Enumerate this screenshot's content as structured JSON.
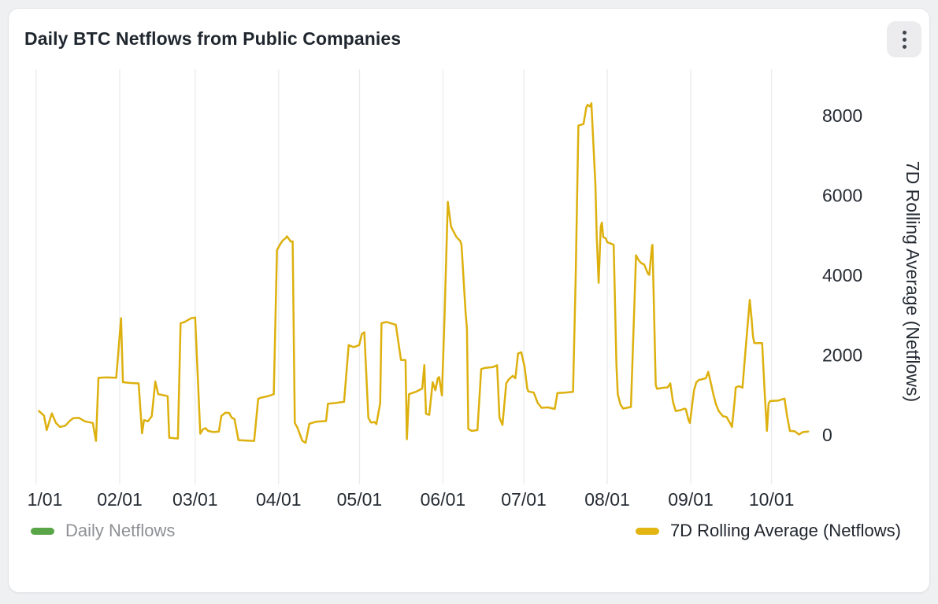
{
  "header": {
    "title": "Daily BTC Netflows from Public Companies"
  },
  "legend": {
    "daily": {
      "label": "Daily Netflows",
      "color": "#5aa548",
      "active": false
    },
    "rolling": {
      "label": "7D Rolling Average (Netflows)",
      "color": "#e2b512",
      "active": true
    }
  },
  "colors": {
    "page_bg": "#eef0f2",
    "card_bg": "#ffffff",
    "card_border": "#e2e4e7",
    "title_text": "#1f262e",
    "tick_text": "#262c34",
    "gridline": "#ebecee",
    "line": "#ddb00e",
    "legend_muted_text": "#8e9095",
    "legend_active_text": "#20262e",
    "kebab_bg": "#ececef",
    "kebab_dots": "#3f454d"
  },
  "chart_data": {
    "type": "line",
    "title": "Daily BTC Netflows from Public Companies",
    "grid": "vertical-only",
    "x_axis": {
      "unit": "day of year (0 = Jan 1)",
      "tick_labels": [
        "1/01",
        "02/01",
        "03/01",
        "04/01",
        "05/01",
        "06/01",
        "07/01",
        "08/01",
        "09/01",
        "10/01"
      ],
      "tick_days": [
        0,
        31,
        59,
        90,
        120,
        151,
        181,
        212,
        243,
        273
      ],
      "range_days": [
        0,
        293
      ]
    },
    "y_axis": {
      "side": "right",
      "title": "7D Rolling Average (Netflows)",
      "ticks": [
        0,
        2000,
        4000,
        6000,
        8000
      ],
      "range": [
        -1200,
        9150
      ]
    },
    "legend_position": "bottom",
    "series": [
      {
        "name": "7D Rolling Average (Netflows)",
        "color": "#ddb00e",
        "width": 2.5,
        "points": [
          [
            1,
            600
          ],
          [
            2.9,
            480
          ],
          [
            3.9,
            120
          ],
          [
            5.8,
            540
          ],
          [
            7.3,
            300
          ],
          [
            8.8,
            200
          ],
          [
            10.8,
            230
          ],
          [
            12.3,
            340
          ],
          [
            13.7,
            420
          ],
          [
            15.8,
            430
          ],
          [
            18,
            340
          ],
          [
            21,
            300
          ],
          [
            22.2,
            -150
          ],
          [
            23.1,
            1430
          ],
          [
            26.3,
            1440
          ],
          [
            29.7,
            1430
          ],
          [
            31.5,
            2925
          ],
          [
            32.2,
            1320
          ],
          [
            35.1,
            1300
          ],
          [
            38,
            1290
          ],
          [
            39.3,
            40
          ],
          [
            40,
            370
          ],
          [
            41.5,
            340
          ],
          [
            42.9,
            470
          ],
          [
            44.2,
            1340
          ],
          [
            45.3,
            1020
          ],
          [
            47.7,
            990
          ],
          [
            48.8,
            970
          ],
          [
            49.4,
            -70
          ],
          [
            52.6,
            -90
          ],
          [
            53.6,
            2800
          ],
          [
            55.1,
            2830
          ],
          [
            57.5,
            2925
          ],
          [
            59,
            2940
          ],
          [
            60.9,
            30
          ],
          [
            61.9,
            140
          ],
          [
            62.9,
            170
          ],
          [
            63.8,
            100
          ],
          [
            65.8,
            70
          ],
          [
            67.8,
            85
          ],
          [
            68.7,
            470
          ],
          [
            70.2,
            555
          ],
          [
            71.6,
            550
          ],
          [
            72.6,
            430
          ],
          [
            73.6,
            400
          ],
          [
            75.1,
            -130
          ],
          [
            77.5,
            -140
          ],
          [
            80.9,
            -150
          ],
          [
            82.4,
            900
          ],
          [
            83.3,
            930
          ],
          [
            86.3,
            975
          ],
          [
            88.2,
            1020
          ],
          [
            89.4,
            4630
          ],
          [
            90.6,
            4780
          ],
          [
            91.5,
            4870
          ],
          [
            92.6,
            4930
          ],
          [
            93.1,
            4975
          ],
          [
            94.5,
            4845
          ],
          [
            95.2,
            4850
          ],
          [
            96,
            300
          ],
          [
            97,
            180
          ],
          [
            98.8,
            -150
          ],
          [
            100,
            -200
          ],
          [
            101.4,
            280
          ],
          [
            103.8,
            330
          ],
          [
            107.6,
            350
          ],
          [
            108.3,
            780
          ],
          [
            111.1,
            800
          ],
          [
            114.3,
            830
          ],
          [
            116,
            2250
          ],
          [
            117.8,
            2200
          ],
          [
            119.9,
            2250
          ],
          [
            120.9,
            2530
          ],
          [
            121.8,
            2570
          ],
          [
            123.3,
            430
          ],
          [
            124.3,
            310
          ],
          [
            125.7,
            320
          ],
          [
            126.3,
            270
          ],
          [
            127.7,
            790
          ],
          [
            128.2,
            2800
          ],
          [
            130.1,
            2830
          ],
          [
            133.5,
            2760
          ],
          [
            135.4,
            1880
          ],
          [
            137.1,
            1875
          ],
          [
            137.6,
            -110
          ],
          [
            138.4,
            1020
          ],
          [
            140.9,
            1080
          ],
          [
            143.3,
            1160
          ],
          [
            144.1,
            1750
          ],
          [
            144.7,
            530
          ],
          [
            145.9,
            500
          ],
          [
            147.2,
            1320
          ],
          [
            148.2,
            1120
          ],
          [
            149.1,
            1420
          ],
          [
            149.6,
            1450
          ],
          [
            150.6,
            990
          ],
          [
            151.6,
            3000
          ],
          [
            152.8,
            5840
          ],
          [
            154,
            5220
          ],
          [
            154.5,
            5150
          ],
          [
            156,
            4960
          ],
          [
            157.4,
            4860
          ],
          [
            157.9,
            4760
          ],
          [
            159.4,
            3090
          ],
          [
            159.9,
            2660
          ],
          [
            160.4,
            150
          ],
          [
            161.7,
            100
          ],
          [
            163.8,
            120
          ],
          [
            165.2,
            1650
          ],
          [
            166.7,
            1680
          ],
          [
            169.6,
            1700
          ],
          [
            171.1,
            1745
          ],
          [
            172,
            430
          ],
          [
            173.1,
            250
          ],
          [
            174.5,
            1290
          ],
          [
            175.4,
            1390
          ],
          [
            176.9,
            1480
          ],
          [
            177.9,
            1420
          ],
          [
            178.9,
            2040
          ],
          [
            180.1,
            2070
          ],
          [
            181.3,
            1710
          ],
          [
            182.3,
            1160
          ],
          [
            182.7,
            1090
          ],
          [
            184.7,
            1060
          ],
          [
            186.2,
            800
          ],
          [
            187.6,
            680
          ],
          [
            190,
            690
          ],
          [
            192.5,
            650
          ],
          [
            193.5,
            1050
          ],
          [
            196.2,
            1060
          ],
          [
            199.3,
            1080
          ],
          [
            200.3,
            4000
          ],
          [
            201.3,
            7750
          ],
          [
            203.2,
            7790
          ],
          [
            204.2,
            8200
          ],
          [
            204.7,
            8270
          ],
          [
            205.6,
            8230
          ],
          [
            206.1,
            8310
          ],
          [
            207.6,
            6270
          ],
          [
            208.1,
            4960
          ],
          [
            208.8,
            3810
          ],
          [
            209.6,
            5220
          ],
          [
            210,
            5320
          ],
          [
            210.5,
            4960
          ],
          [
            211.5,
            4920
          ],
          [
            212,
            4830
          ],
          [
            213.5,
            4790
          ],
          [
            214.4,
            4760
          ],
          [
            215.4,
            1750
          ],
          [
            215.9,
            1020
          ],
          [
            216.9,
            760
          ],
          [
            217.9,
            660
          ],
          [
            219.3,
            680
          ],
          [
            220.8,
            700
          ],
          [
            222.7,
            4500
          ],
          [
            223.7,
            4370
          ],
          [
            224.7,
            4300
          ],
          [
            225.7,
            4270
          ],
          [
            227.1,
            4040
          ],
          [
            227.6,
            4010
          ],
          [
            228.6,
            4730
          ],
          [
            228.8,
            4760
          ],
          [
            230,
            1250
          ],
          [
            230.5,
            1155
          ],
          [
            232.5,
            1180
          ],
          [
            234.4,
            1190
          ],
          [
            235.4,
            1290
          ],
          [
            236.4,
            830
          ],
          [
            237.4,
            600
          ],
          [
            239.2,
            620
          ],
          [
            240.7,
            660
          ],
          [
            241.2,
            640
          ],
          [
            242.2,
            370
          ],
          [
            242.7,
            300
          ],
          [
            243.7,
            860
          ],
          [
            244.2,
            1120
          ],
          [
            245.1,
            1320
          ],
          [
            246.1,
            1380
          ],
          [
            247.6,
            1400
          ],
          [
            248.6,
            1420
          ],
          [
            249.5,
            1580
          ],
          [
            250.5,
            1290
          ],
          [
            251.5,
            990
          ],
          [
            252.4,
            760
          ],
          [
            253.4,
            600
          ],
          [
            254.9,
            470
          ],
          [
            256.3,
            450
          ],
          [
            257.8,
            270
          ],
          [
            258.3,
            200
          ],
          [
            259.3,
            860
          ],
          [
            259.7,
            1190
          ],
          [
            260.7,
            1220
          ],
          [
            261.7,
            1200
          ],
          [
            262.2,
            1180
          ],
          [
            263.2,
            2000
          ],
          [
            264.9,
            3383
          ],
          [
            265.6,
            2890
          ],
          [
            266.1,
            2465
          ],
          [
            266.6,
            2300
          ],
          [
            269.5,
            2300
          ],
          [
            270.5,
            1000
          ],
          [
            271.3,
            100
          ],
          [
            271.9,
            790
          ],
          [
            272.5,
            850
          ],
          [
            275.4,
            860
          ],
          [
            277.8,
            910
          ],
          [
            278.8,
            460
          ],
          [
            279.8,
            100
          ],
          [
            281.6,
            90
          ],
          [
            283.2,
            10
          ],
          [
            284.6,
            70
          ],
          [
            286.6,
            85
          ]
        ]
      }
    ]
  }
}
